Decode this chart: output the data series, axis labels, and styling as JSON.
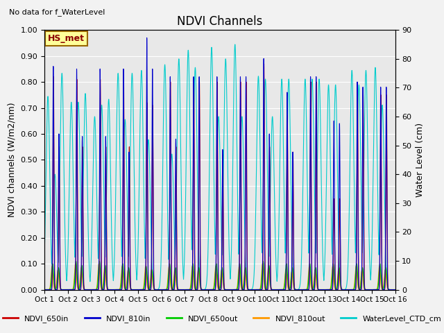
{
  "title": "NDVI Channels",
  "subtitle": "No data for f_WaterLevel",
  "ylabel_left": "NDVI channels (W/m2/nm)",
  "ylabel_right": "Water Level (cm)",
  "ylim_left": [
    0.0,
    1.0
  ],
  "ylim_right": [
    0,
    90
  ],
  "yticks_left": [
    0.0,
    0.1,
    0.2,
    0.3,
    0.4,
    0.5,
    0.6,
    0.7,
    0.8,
    0.9,
    1.0
  ],
  "yticks_right": [
    0,
    10,
    20,
    30,
    40,
    50,
    60,
    70,
    80,
    90
  ],
  "xtick_labels": [
    "Oct 1",
    "Oct 2",
    "Oct 3",
    "Oct 4",
    "Oct 5",
    "Oct 6",
    "Oct 7",
    "Oct 8",
    "Oct 9",
    "Oct 10",
    "Oct 11",
    "Oct 12",
    "Oct 13",
    "Oct 14",
    "Oct 15",
    "Oct 16"
  ],
  "colors": {
    "NDVI_650in": "#cc0000",
    "NDVI_810in": "#0000cc",
    "NDVI_650out": "#00cc00",
    "NDVI_810out": "#ff9900",
    "WaterLevel_CTD_cm": "#00cccc"
  },
  "legend_label": "HS_met",
  "bg_color": "#e8e8e8",
  "grid_color": "#ffffff",
  "peaks_810in": [
    0.86,
    0.85,
    0.85,
    0.85,
    0.97,
    0.82,
    0.82,
    0.82,
    0.82,
    0.89,
    0.76,
    0.82,
    0.65,
    0.8,
    0.78
  ],
  "peaks_810in_b": [
    0.6,
    0.59,
    0.59,
    0.53,
    0.85,
    0.58,
    0.82,
    0.54,
    0.82,
    0.6,
    0.53,
    0.82,
    0.64,
    0.78,
    0.78
  ],
  "peaks_650in": [
    0.82,
    0.81,
    0.81,
    0.81,
    0.72,
    0.8,
    0.8,
    0.8,
    0.8,
    0.87,
    0.67,
    0.8,
    0.35,
    0.78,
    0.75
  ],
  "peaks_650in_b": [
    0.55,
    0.55,
    0.55,
    0.55,
    0.71,
    0.55,
    0.8,
    0.52,
    0.8,
    0.55,
    0.53,
    0.8,
    0.35,
    0.75,
    0.75
  ],
  "peaks_650out": [
    0.1,
    0.11,
    0.11,
    0.1,
    0.09,
    0.1,
    0.1,
    0.1,
    0.1,
    0.11,
    0.1,
    0.1,
    0.1,
    0.1,
    0.1
  ],
  "peaks_810out": [
    0.09,
    0.1,
    0.1,
    0.09,
    0.09,
    0.09,
    0.09,
    0.09,
    0.09,
    0.1,
    0.08,
    0.09,
    0.09,
    0.09,
    0.09
  ],
  "wl_peaks_a": [
    67,
    65,
    60,
    75,
    76,
    78,
    83,
    84,
    85,
    74,
    73,
    73,
    71,
    76,
    77
  ],
  "wl_peaks_b": [
    40,
    65,
    64,
    59,
    52,
    47,
    77,
    60,
    60,
    73,
    73,
    73,
    71,
    71,
    64
  ],
  "wl_peaks_c": [
    75,
    68,
    66,
    75,
    0,
    80,
    0,
    80,
    0,
    60,
    0,
    73,
    0,
    76,
    0
  ]
}
